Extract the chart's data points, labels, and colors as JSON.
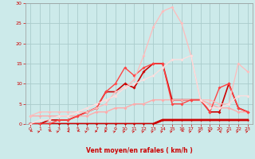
{
  "background_color": "#cceaea",
  "grid_color": "#aacccc",
  "xlabel": "Vent moyen/en rafales ( km/h )",
  "xlim": [
    -0.5,
    23.5
  ],
  "ylim": [
    0,
    30
  ],
  "yticks": [
    0,
    5,
    10,
    15,
    20,
    25,
    30
  ],
  "xticks": [
    0,
    1,
    2,
    3,
    4,
    5,
    6,
    7,
    8,
    9,
    10,
    11,
    12,
    13,
    14,
    15,
    16,
    17,
    18,
    19,
    20,
    21,
    22,
    23
  ],
  "series": [
    {
      "x": [
        0,
        1,
        2,
        3,
        4,
        5,
        6,
        7,
        8,
        9,
        10,
        11,
        12,
        13,
        14,
        15,
        16,
        17,
        18,
        19,
        20,
        21,
        22,
        23
      ],
      "y": [
        0,
        0,
        1,
        1,
        1,
        2,
        3,
        4,
        8,
        8,
        10,
        9,
        13,
        15,
        15,
        6,
        6,
        6,
        6,
        3,
        3,
        10,
        4,
        3
      ],
      "color": "#cc0000",
      "linewidth": 1.2,
      "marker": "D",
      "markersize": 2.0
    },
    {
      "x": [
        0,
        1,
        2,
        3,
        4,
        5,
        6,
        7,
        8,
        9,
        10,
        11,
        12,
        13,
        14,
        15,
        16,
        17,
        18,
        19,
        20,
        21,
        22,
        23
      ],
      "y": [
        0,
        0,
        0,
        0,
        0,
        0,
        0,
        0,
        0,
        0,
        0,
        0,
        0,
        0,
        1,
        1,
        1,
        1,
        1,
        1,
        1,
        1,
        1,
        1
      ],
      "color": "#cc0000",
      "linewidth": 2.0,
      "marker": "D",
      "markersize": 1.5
    },
    {
      "x": [
        0,
        1,
        2,
        3,
        4,
        5,
        6,
        7,
        8,
        9,
        10,
        11,
        12,
        13,
        14,
        15,
        16,
        17,
        18,
        19,
        20,
        21,
        22,
        23
      ],
      "y": [
        2,
        2,
        2,
        2,
        2,
        2,
        2,
        3,
        3,
        4,
        4,
        5,
        5,
        6,
        6,
        6,
        6,
        6,
        6,
        5,
        4,
        4,
        3,
        3
      ],
      "color": "#ffaaaa",
      "linewidth": 1.0,
      "marker": "D",
      "markersize": 2.0
    },
    {
      "x": [
        0,
        1,
        2,
        3,
        4,
        5,
        6,
        7,
        8,
        9,
        10,
        11,
        12,
        13,
        14,
        15,
        16,
        17,
        18,
        19,
        20,
        21,
        22,
        23
      ],
      "y": [
        0,
        0,
        0,
        1,
        1,
        2,
        3,
        4,
        8,
        10,
        14,
        12,
        14,
        15,
        15,
        5,
        5,
        6,
        6,
        3,
        9,
        10,
        4,
        3
      ],
      "color": "#ff4444",
      "linewidth": 1.0,
      "marker": "D",
      "markersize": 2.0
    },
    {
      "x": [
        0,
        1,
        2,
        3,
        4,
        5,
        6,
        7,
        8,
        9,
        10,
        11,
        12,
        13,
        14,
        15,
        16,
        17,
        18,
        19,
        20,
        21,
        22,
        23
      ],
      "y": [
        2,
        3,
        3,
        3,
        3,
        3,
        3,
        4,
        5,
        8,
        9,
        11,
        17,
        24,
        28,
        29,
        25,
        17,
        6,
        6,
        5,
        5,
        15,
        13
      ],
      "color": "#ffbbbb",
      "linewidth": 0.9,
      "marker": "D",
      "markersize": 2.0
    },
    {
      "x": [
        0,
        1,
        2,
        3,
        4,
        5,
        6,
        7,
        8,
        9,
        10,
        11,
        12,
        13,
        14,
        15,
        16,
        17,
        18,
        19,
        20,
        21,
        22,
        23
      ],
      "y": [
        0,
        1,
        1,
        2,
        2,
        3,
        4,
        5,
        6,
        7,
        9,
        10,
        11,
        12,
        14,
        16,
        16,
        17,
        6,
        4,
        4,
        5,
        7,
        7
      ],
      "color": "#ffdddd",
      "linewidth": 0.9,
      "marker": "D",
      "markersize": 2.0
    }
  ],
  "directions": [
    225,
    45,
    225,
    45,
    270,
    225,
    45,
    90,
    90,
    45,
    45,
    45,
    45,
    45,
    45,
    45,
    225,
    45,
    45,
    90,
    315,
    45,
    45,
    45
  ]
}
